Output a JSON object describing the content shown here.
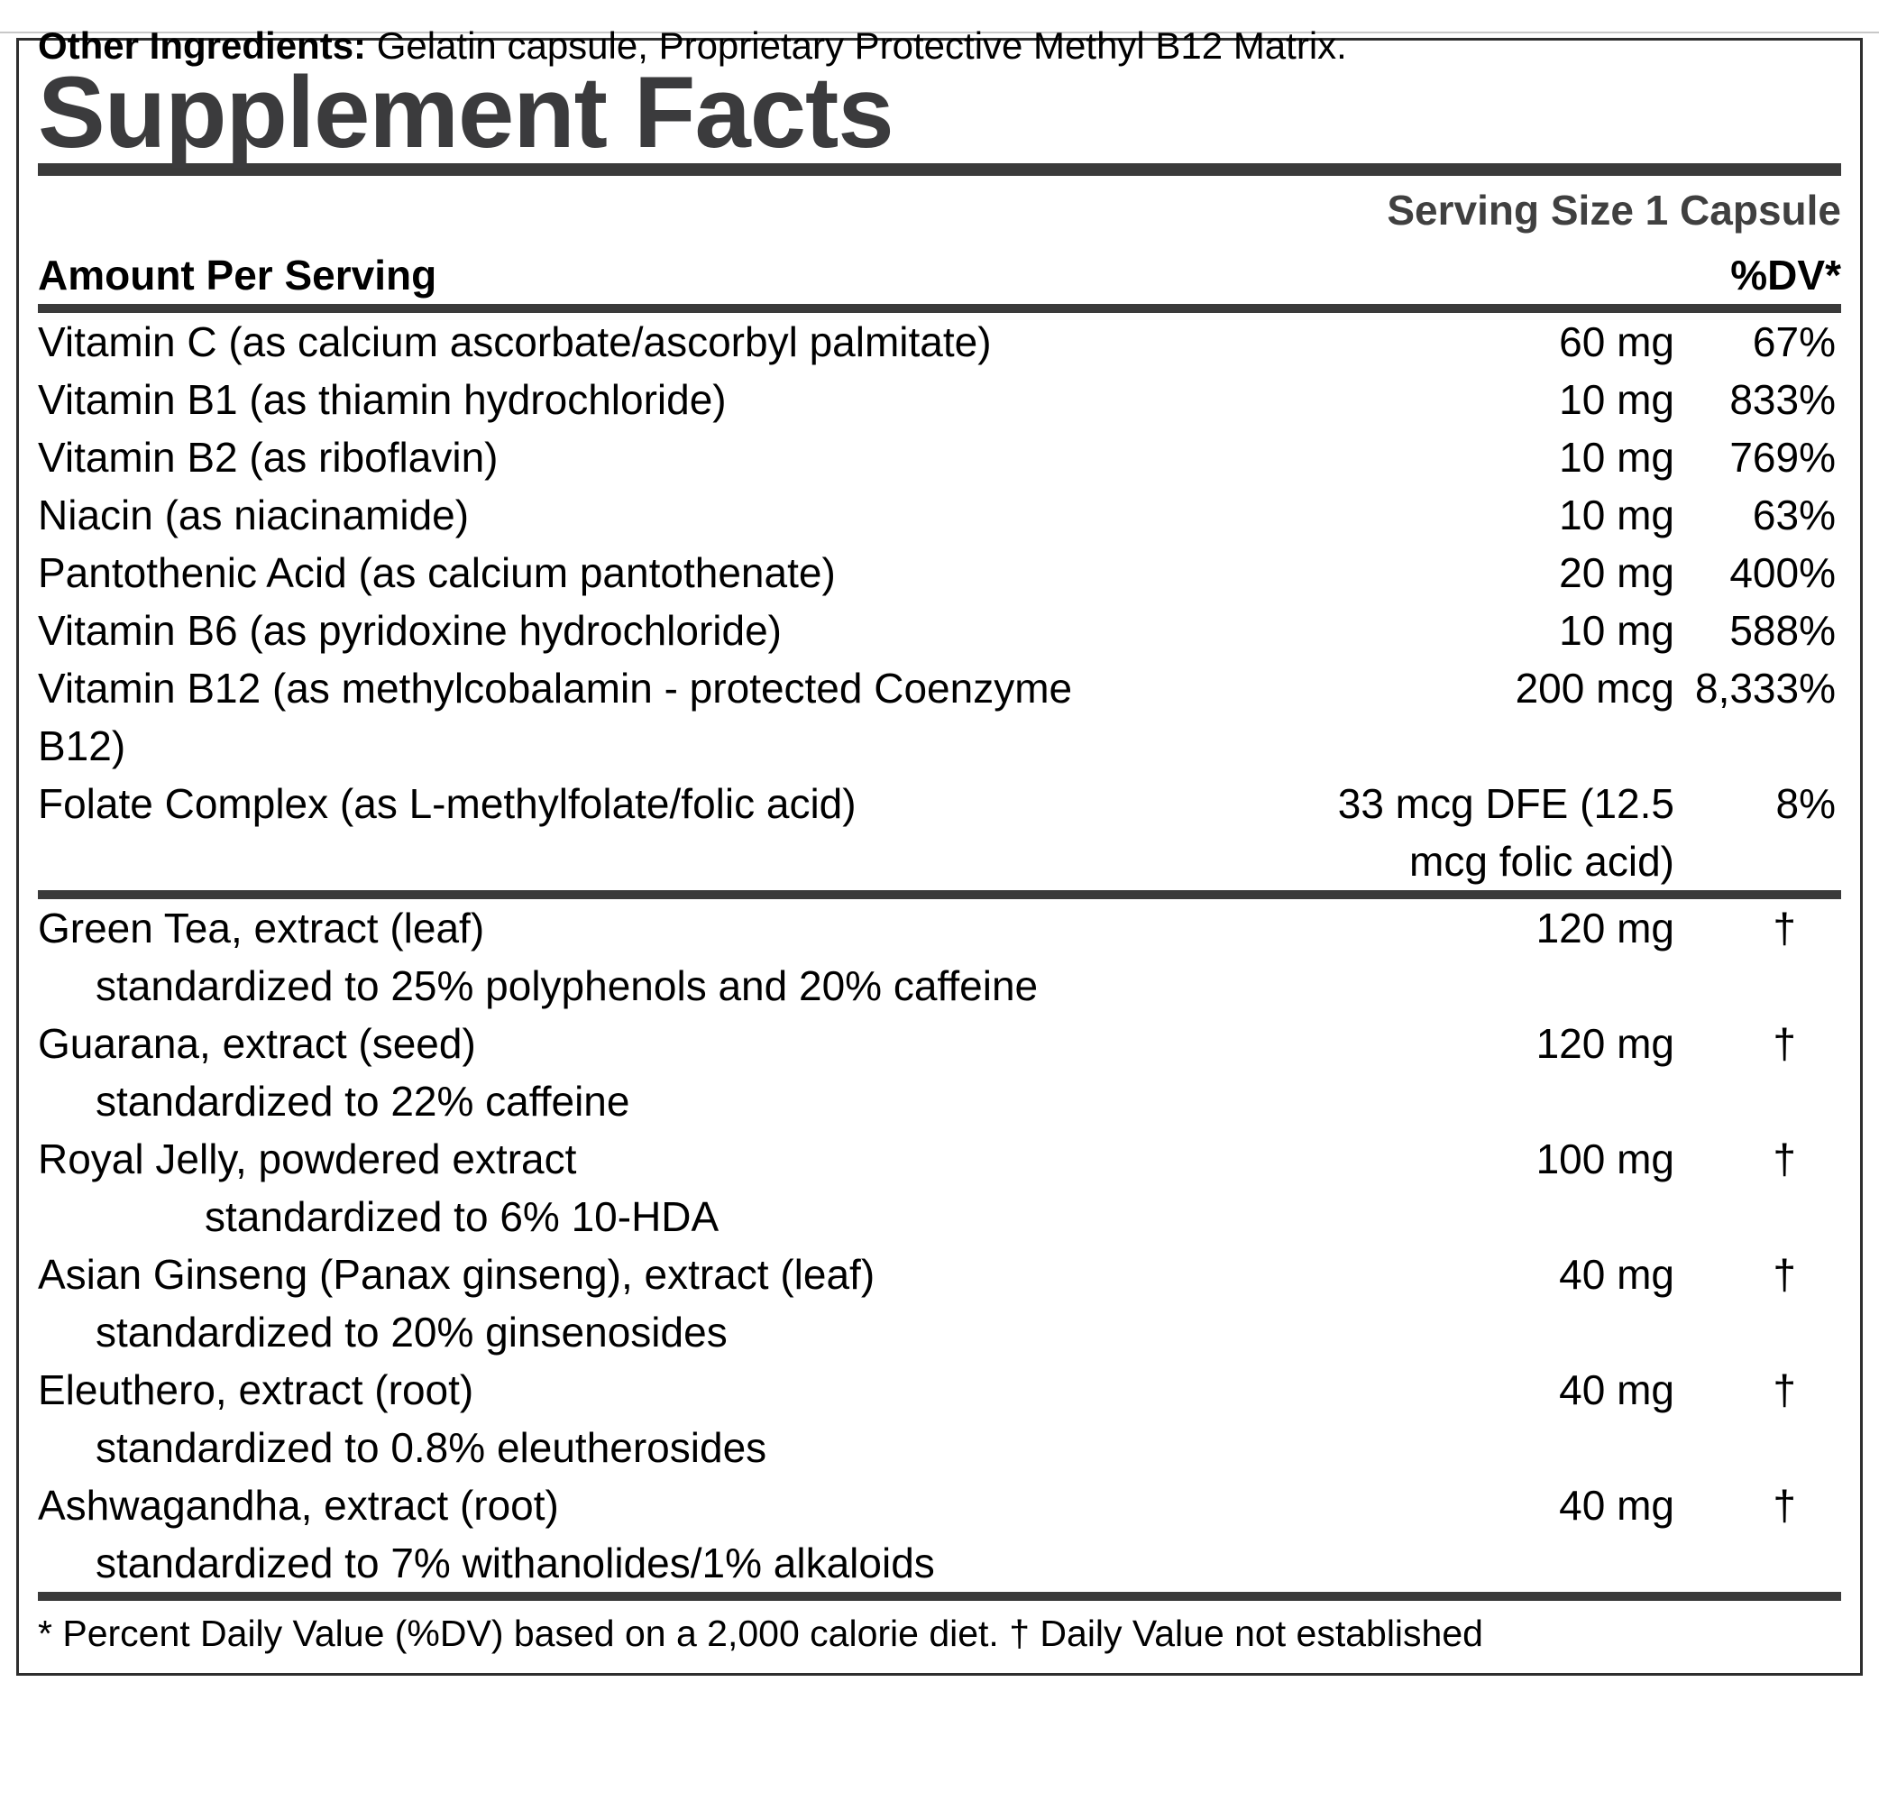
{
  "label": {
    "title": "Supplement Facts",
    "serving_size": "Serving Size 1 Capsule",
    "columns": {
      "amount_header": "Amount Per Serving",
      "dv_header": "%DV*"
    },
    "vitamins": [
      {
        "name": "Vitamin C (as calcium ascorbate/ascorbyl palmitate)",
        "amount": "60 mg",
        "dv": "67%"
      },
      {
        "name": "Vitamin B1 (as thiamin hydrochloride)",
        "amount": "10 mg",
        "dv": "833%"
      },
      {
        "name": "Vitamin B2 (as riboflavin)",
        "amount": "10 mg",
        "dv": "769%"
      },
      {
        "name": "Niacin (as niacinamide)",
        "amount": "10 mg",
        "dv": "63%"
      },
      {
        "name": "Pantothenic Acid (as calcium pantothenate)",
        "amount": "20 mg",
        "dv": "400%"
      },
      {
        "name": "Vitamin B6 (as pyridoxine hydrochloride)",
        "amount": "10 mg",
        "dv": "588%"
      },
      {
        "name": "Vitamin B12 (as methylcobalamin - protected Coenzyme B12)",
        "amount": "200 mcg",
        "dv": "8,333%"
      },
      {
        "name": "Folate Complex (as L-methylfolate/folic acid)",
        "amount": "33 mcg DFE (12.5 mcg folic acid)",
        "dv": "8%"
      }
    ],
    "botanicals": [
      {
        "name": "Green Tea, extract (leaf)",
        "amount": "120 mg",
        "dv": "†",
        "detail": "standardized to 25% polyphenols and 20% caffeine",
        "detail_indent": "normal"
      },
      {
        "name": "Guarana, extract (seed)",
        "amount": "120 mg",
        "dv": "†",
        "detail": "standardized to 22% caffeine",
        "detail_indent": "normal"
      },
      {
        "name": "Royal Jelly, powdered extract",
        "amount": "100 mg",
        "dv": "†",
        "detail": "standardized to 6% 10-HDA",
        "detail_indent": "deep"
      },
      {
        "name": "Asian Ginseng (Panax ginseng), extract (leaf)",
        "amount": "40 mg",
        "dv": "†",
        "detail": "standardized to 20% ginsenosides",
        "detail_indent": "normal"
      },
      {
        "name": "Eleuthero, extract (root)",
        "amount": "40 mg",
        "dv": "†",
        "detail": "standardized to 0.8% eleutherosides",
        "detail_indent": "normal"
      },
      {
        "name": "Ashwagandha, extract (root)",
        "amount": "40 mg",
        "dv": "†",
        "detail": "standardized to 7% withanolides/1% alkaloids",
        "detail_indent": "normal"
      }
    ],
    "footnote": "* Percent Daily Value (%DV) based on a 2,000 calorie diet. † Daily Value not established",
    "other_ingredients_label": "Other Ingredients:",
    "other_ingredients_text": " Gelatin capsule, Proprietary Protective Methyl B12 Matrix.",
    "colors": {
      "bar": "#3a3a3a",
      "title_text": "#3b3b3d",
      "box_border": "#2e2e2e",
      "top_line": "#c8c8c8"
    }
  }
}
